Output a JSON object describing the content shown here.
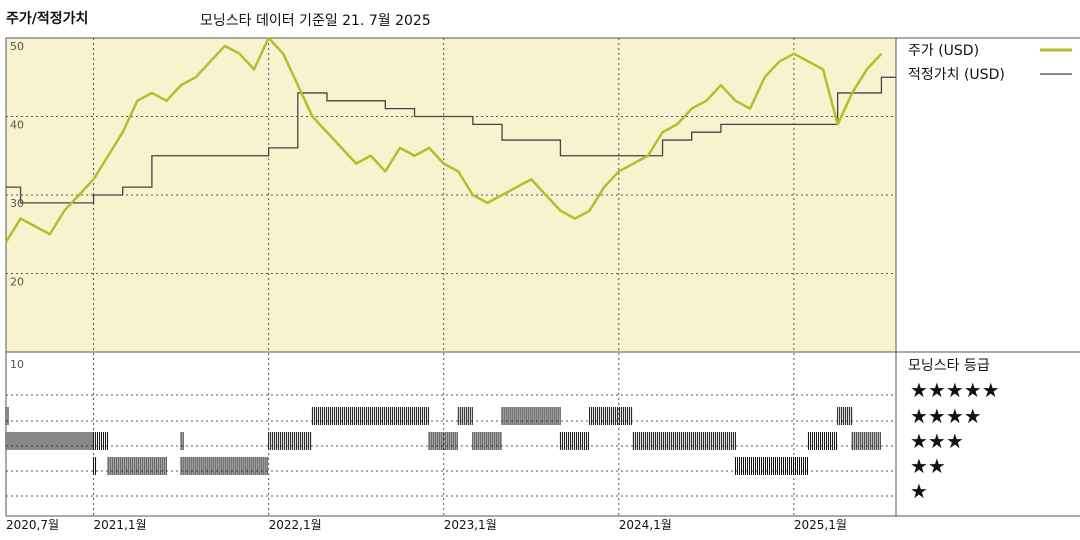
{
  "header": {
    "title": "주가/적정가치",
    "subtitle": "모닝스타 데이터 기준일 21. 7월 2025"
  },
  "legend": {
    "price_label": "주가 (USD)",
    "fair_value_label": "적정가치 (USD)",
    "rating_title": "모닝스타 등급"
  },
  "colors": {
    "price_line": "#b5bd2c",
    "fair_value_line": "#444444",
    "panel_fill": "#f8f3cf",
    "grid": "#555555",
    "rating_bar": "#111111"
  },
  "chart_data": {
    "type": "line",
    "title": "주가/적정가치",
    "subtitle": "모닝스타 데이터 기준일 21. 7월 2025",
    "x_tick_labels": [
      "2020,7월",
      "2021,1월",
      "2022,1월",
      "2023,1월",
      "2024,1월",
      "2025,1월"
    ],
    "y_tick_labels": [
      "50",
      "40",
      "30",
      "20",
      "10"
    ],
    "ylim": [
      10,
      50
    ],
    "xlim": [
      "2020-07",
      "2025-08"
    ],
    "grid": true,
    "legend_position": "right",
    "series": [
      {
        "name": "주가 (USD)",
        "x": [
          "2020-07",
          "2020-08",
          "2020-09",
          "2020-10",
          "2020-11",
          "2020-12",
          "2021-01",
          "2021-02",
          "2021-03",
          "2021-04",
          "2021-05",
          "2021-06",
          "2021-07",
          "2021-08",
          "2021-09",
          "2021-10",
          "2021-11",
          "2021-12",
          "2022-01",
          "2022-02",
          "2022-03",
          "2022-04",
          "2022-05",
          "2022-06",
          "2022-07",
          "2022-08",
          "2022-09",
          "2022-10",
          "2022-11",
          "2022-12",
          "2023-01",
          "2023-02",
          "2023-03",
          "2023-04",
          "2023-05",
          "2023-06",
          "2023-07",
          "2023-08",
          "2023-09",
          "2023-10",
          "2023-11",
          "2023-12",
          "2024-01",
          "2024-02",
          "2024-03",
          "2024-04",
          "2024-05",
          "2024-06",
          "2024-07",
          "2024-08",
          "2024-09",
          "2024-10",
          "2024-11",
          "2024-12",
          "2025-01",
          "2025-02",
          "2025-03",
          "2025-04",
          "2025-05",
          "2025-06",
          "2025-07"
        ],
        "values": [
          24,
          27,
          26,
          25,
          28,
          30,
          32,
          35,
          38,
          42,
          43,
          42,
          44,
          45,
          47,
          49,
          48,
          46,
          50,
          48,
          44,
          40,
          38,
          36,
          34,
          35,
          33,
          36,
          35,
          36,
          34,
          33,
          30,
          29,
          30,
          31,
          32,
          30,
          28,
          27,
          28,
          31,
          33,
          34,
          35,
          38,
          39,
          41,
          42,
          44,
          42,
          41,
          45,
          47,
          48,
          47,
          46,
          39,
          43,
          46,
          48
        ]
      },
      {
        "name": "적정가치 (USD)",
        "x": [
          "2020-07",
          "2020-08",
          "2020-11",
          "2021-01",
          "2021-03",
          "2021-05",
          "2021-08",
          "2021-10",
          "2021-12",
          "2022-01",
          "2022-02",
          "2022-03",
          "2022-05",
          "2022-07",
          "2022-09",
          "2022-11",
          "2023-01",
          "2023-03",
          "2023-05",
          "2023-07",
          "2023-09",
          "2023-11",
          "2024-01",
          "2024-04",
          "2024-06",
          "2024-08",
          "2024-11",
          "2025-01",
          "2025-02",
          "2025-04",
          "2025-07"
        ],
        "values": [
          31,
          29,
          29,
          30,
          31,
          35,
          35,
          35,
          35,
          36,
          36,
          43,
          42,
          42,
          41,
          40,
          40,
          39,
          37,
          37,
          35,
          35,
          35,
          37,
          38,
          39,
          39,
          39,
          39,
          43,
          45
        ]
      }
    ],
    "morningstar_rating": {
      "levels": [
        "★★★★★",
        "★★★★",
        "★★★",
        "★★",
        "★"
      ],
      "periods": [
        {
          "from": "2020-07",
          "to": "2020-07",
          "stars": 4
        },
        {
          "from": "2020-07",
          "to": "2021-01",
          "stars": 3
        },
        {
          "from": "2021-01",
          "to": "2021-01",
          "stars": 2
        },
        {
          "from": "2021-01",
          "to": "2021-02",
          "stars": 3
        },
        {
          "from": "2021-02",
          "to": "2021-06",
          "stars": 2
        },
        {
          "from": "2021-07",
          "to": "2021-07",
          "stars": 3
        },
        {
          "from": "2021-07",
          "to": "2022-01",
          "stars": 2
        },
        {
          "from": "2022-01",
          "to": "2022-04",
          "stars": 3
        },
        {
          "from": "2022-04",
          "to": "2022-12",
          "stars": 4
        },
        {
          "from": "2022-12",
          "to": "2023-02",
          "stars": 3
        },
        {
          "from": "2023-02",
          "to": "2023-03",
          "stars": 4
        },
        {
          "from": "2023-03",
          "to": "2023-05",
          "stars": 3
        },
        {
          "from": "2023-05",
          "to": "2023-09",
          "stars": 4
        },
        {
          "from": "2023-09",
          "to": "2023-11",
          "stars": 3
        },
        {
          "from": "2023-11",
          "to": "2024-02",
          "stars": 4
        },
        {
          "from": "2024-02",
          "to": "2024-09",
          "stars": 3
        },
        {
          "from": "2024-09",
          "to": "2025-02",
          "stars": 2
        },
        {
          "from": "2025-02",
          "to": "2025-04",
          "stars": 3
        },
        {
          "from": "2025-04",
          "to": "2025-05",
          "stars": 4
        },
        {
          "from": "2025-05",
          "to": "2025-07",
          "stars": 3
        }
      ]
    }
  }
}
